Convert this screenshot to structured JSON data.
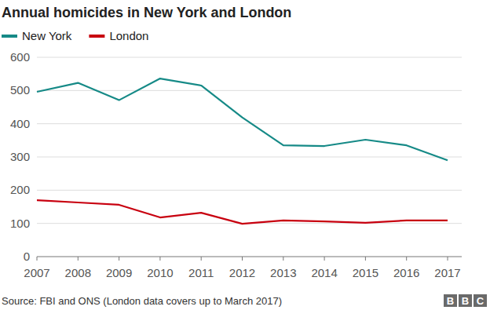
{
  "chart_data": {
    "type": "line",
    "title": "Annual homicides in New York and London",
    "x": [
      2007,
      2008,
      2009,
      2010,
      2011,
      2012,
      2013,
      2014,
      2015,
      2016,
      2017
    ],
    "series": [
      {
        "name": "New York",
        "color": "#168a87",
        "values": [
          496,
          523,
          471,
          536,
          515,
          419,
          335,
          333,
          352,
          335,
          290
        ]
      },
      {
        "name": "London",
        "color": "#c8000f",
        "values": [
          170,
          163,
          156,
          118,
          132,
          99,
          109,
          106,
          102,
          109,
          109
        ]
      }
    ],
    "xlim": [
      2007,
      2017
    ],
    "xticks": [
      2007,
      2008,
      2009,
      2010,
      2011,
      2012,
      2013,
      2014,
      2015,
      2016,
      2017
    ],
    "ylim": [
      0,
      600
    ],
    "yticks": [
      0,
      100,
      200,
      300,
      400,
      500,
      600
    ],
    "grid": true,
    "legend": "top-left",
    "source": "Source: FBI and ONS (London data covers up to March 2017)",
    "credit": "BBC"
  }
}
